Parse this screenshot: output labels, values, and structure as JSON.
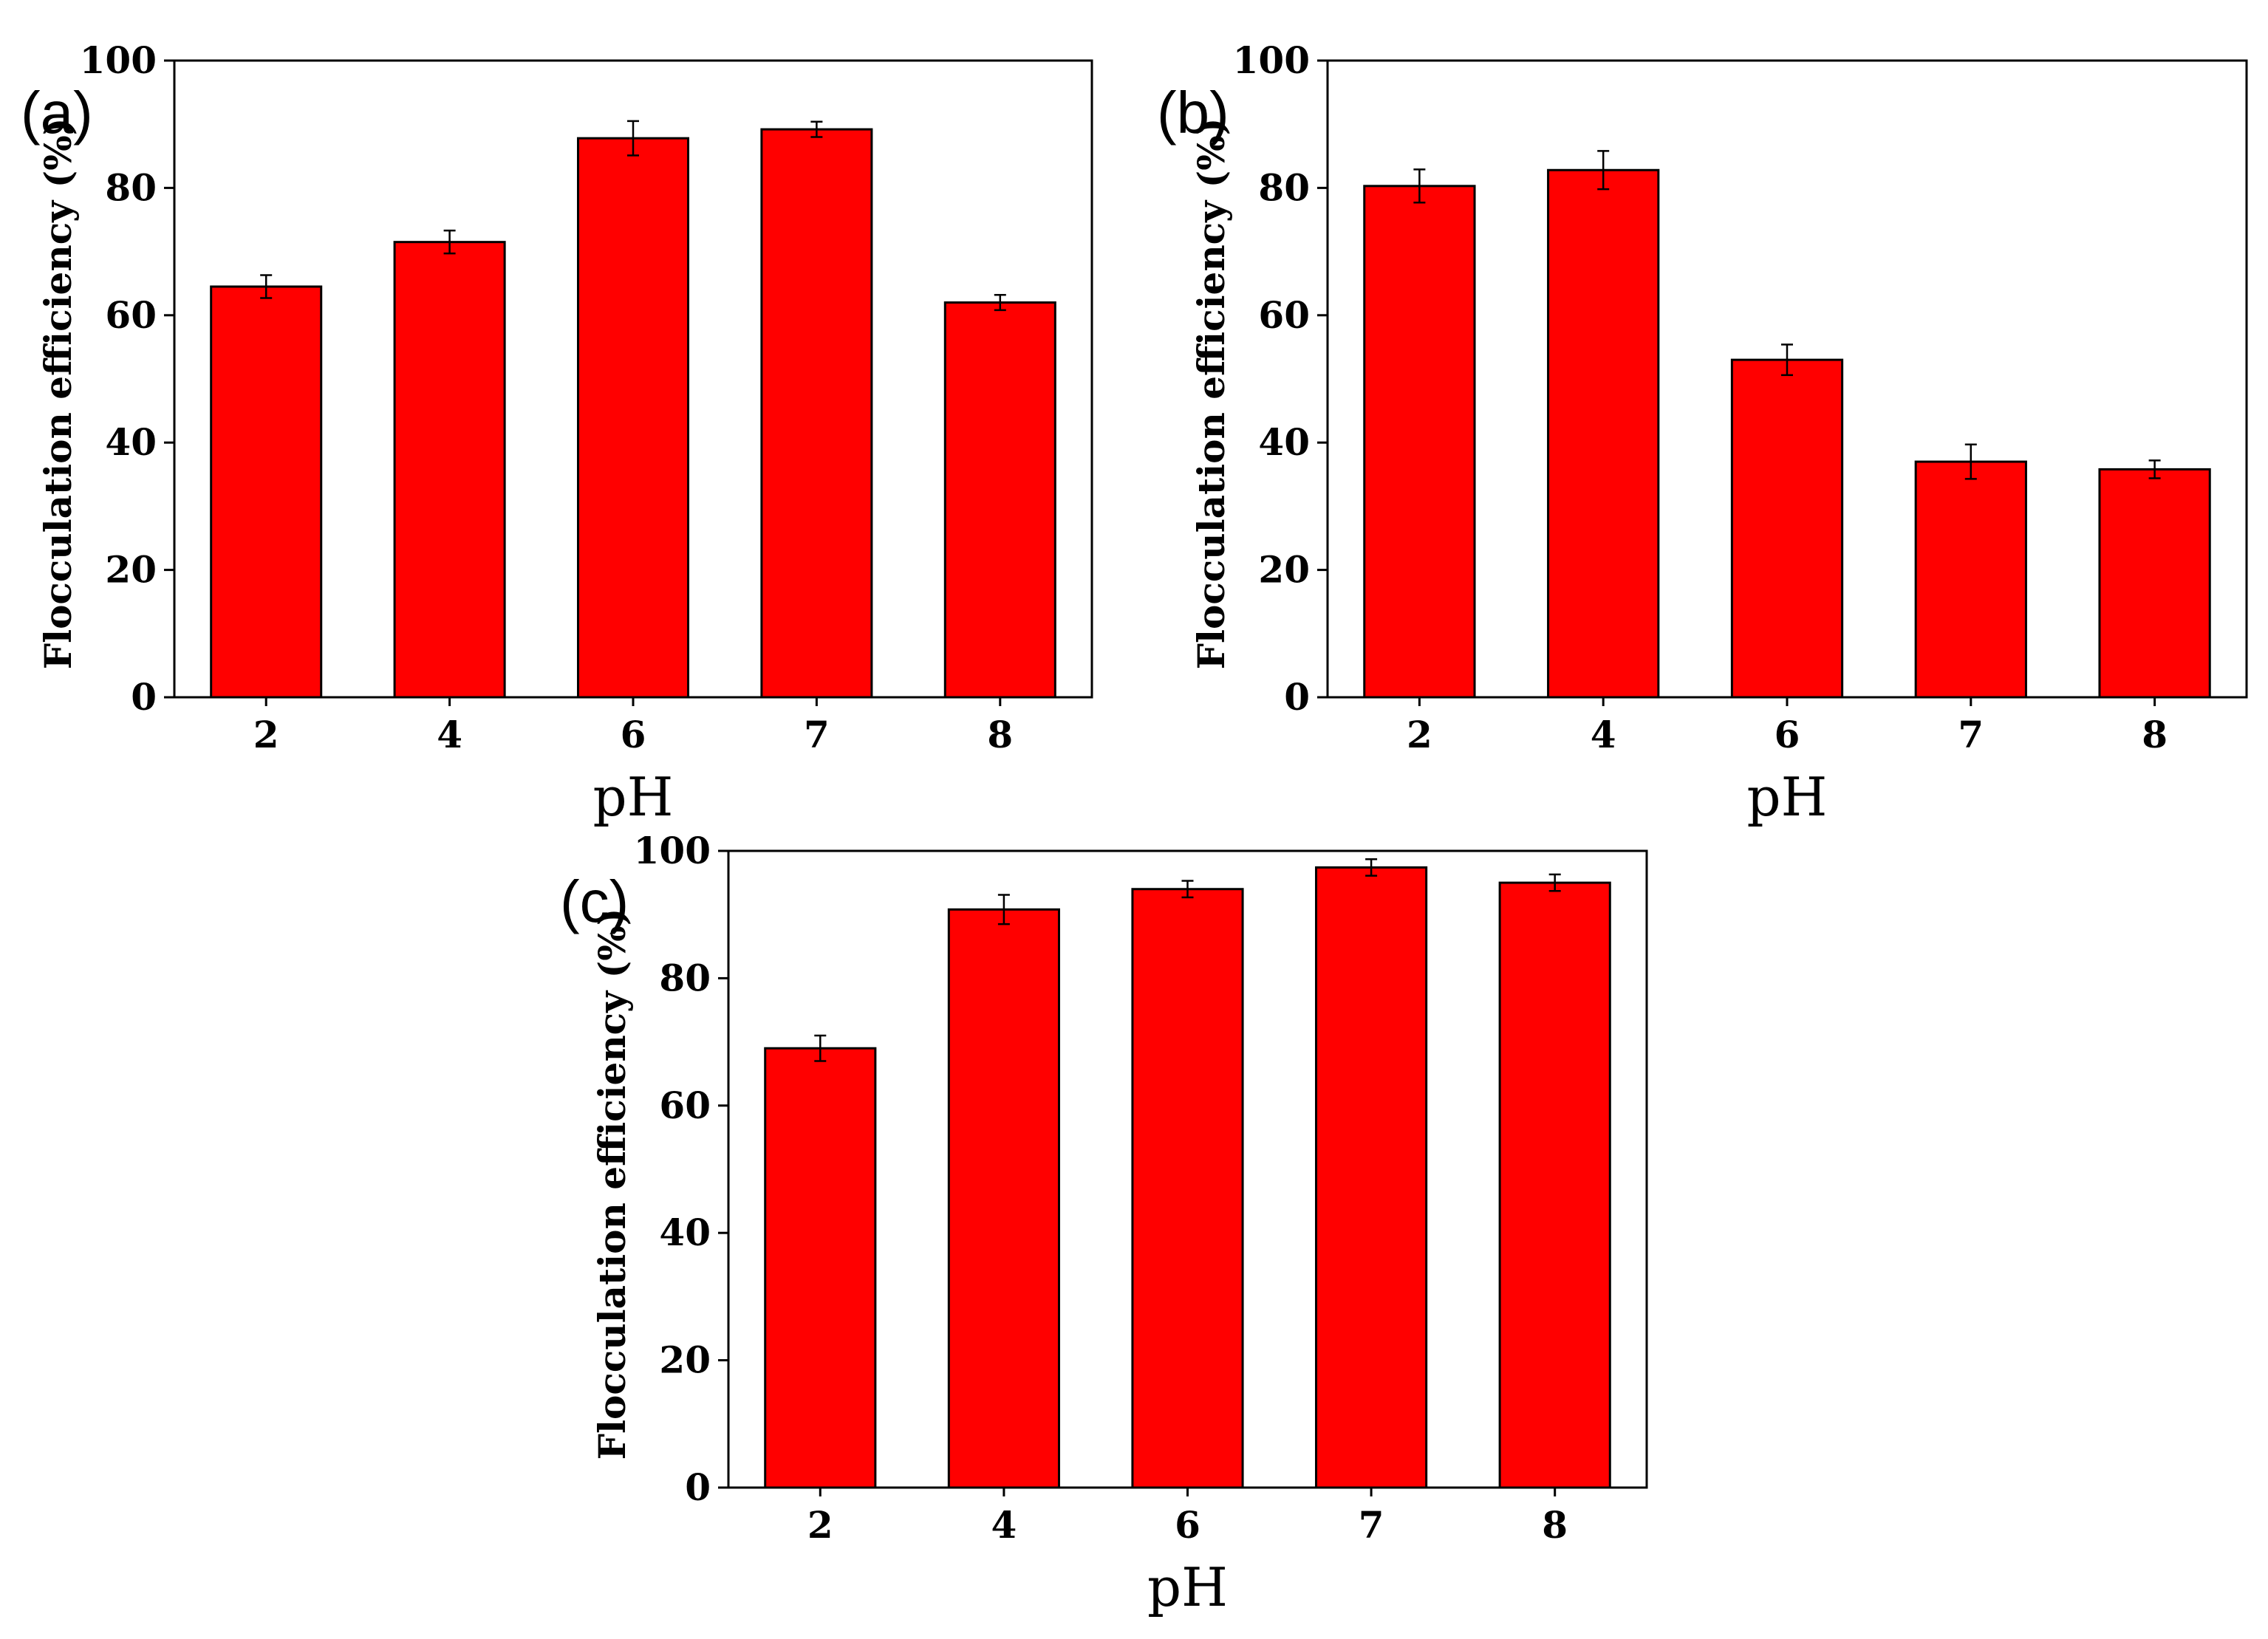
{
  "chart_data": [
    {
      "type": "bar",
      "panel_label": "(a)",
      "categories": [
        "2",
        "4",
        "6",
        "7",
        "8"
      ],
      "values": [
        64.5,
        71.5,
        87.8,
        89.2,
        62.0
      ],
      "errors": [
        1.8,
        1.8,
        2.7,
        1.2,
        1.2
      ],
      "title": "",
      "xlabel": "pH",
      "ylabel": "Flocculation efficiency (%)",
      "ylim": [
        0,
        100
      ],
      "yticks": [
        "0",
        "20",
        "40",
        "60",
        "80",
        "100"
      ],
      "bar_color": "#ff0000"
    },
    {
      "type": "bar",
      "panel_label": "(b)",
      "categories": [
        "2",
        "4",
        "6",
        "7",
        "8"
      ],
      "values": [
        80.3,
        82.8,
        53.0,
        37.0,
        35.8
      ],
      "errors": [
        2.6,
        3.0,
        2.4,
        2.7,
        1.4
      ],
      "title": "",
      "xlabel": "pH",
      "ylabel": "Flocculation efficiency (%)",
      "ylim": [
        0,
        100
      ],
      "yticks": [
        "0",
        "20",
        "40",
        "60",
        "80",
        "100"
      ],
      "bar_color": "#ff0000"
    },
    {
      "type": "bar",
      "panel_label": "(c)",
      "categories": [
        "2",
        "4",
        "6",
        "7",
        "8"
      ],
      "values": [
        69.0,
        90.8,
        94.0,
        97.4,
        95.0
      ],
      "errors": [
        2.0,
        2.3,
        1.3,
        1.3,
        1.3
      ],
      "title": "",
      "xlabel": "pH",
      "ylabel": "Flocculation efficiency (%)",
      "ylim": [
        0,
        100
      ],
      "yticks": [
        "0",
        "20",
        "40",
        "60",
        "80",
        "100"
      ],
      "bar_color": "#ff0000"
    }
  ]
}
